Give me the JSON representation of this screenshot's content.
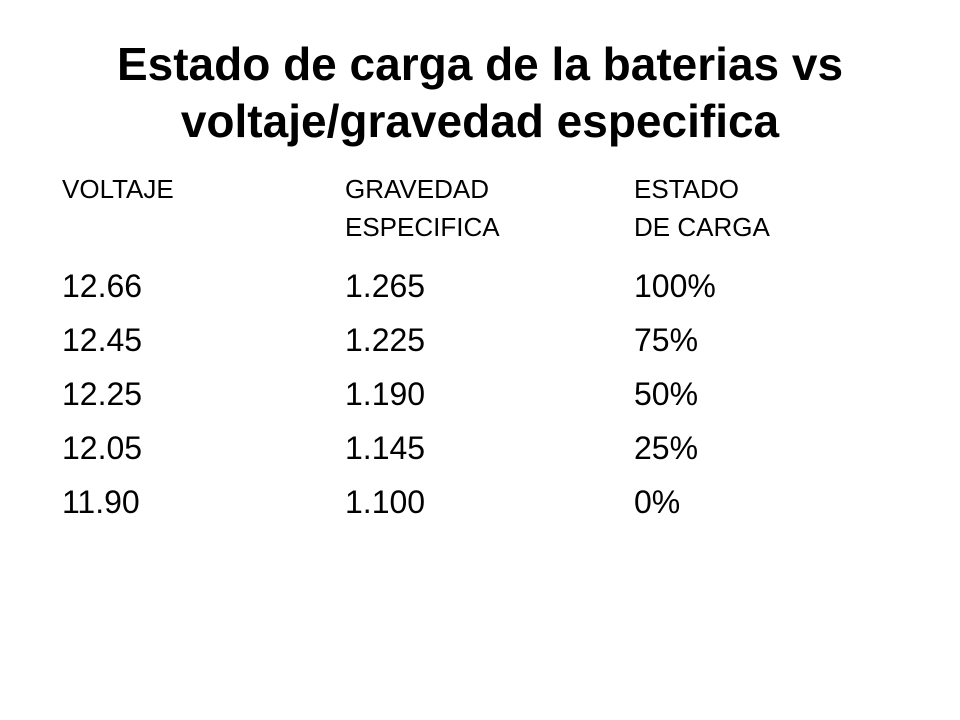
{
  "slide": {
    "title": "Estado de carga de la baterias vs voltaje/gravedad especifica",
    "table": {
      "headers": [
        [
          "VOLTAJE"
        ],
        [
          "GRAVEDAD",
          "ESPECIFICA"
        ],
        [
          "ESTADO",
          "DE CARGA"
        ]
      ],
      "rows": [
        [
          "12.66",
          "1.265",
          "100%"
        ],
        [
          "12.45",
          "1.225",
          "75%"
        ],
        [
          "12.25",
          "1.190",
          "50%"
        ],
        [
          "12.05",
          "1.145",
          "25%"
        ],
        [
          "11.90",
          "1.100",
          "0%"
        ]
      ]
    }
  }
}
